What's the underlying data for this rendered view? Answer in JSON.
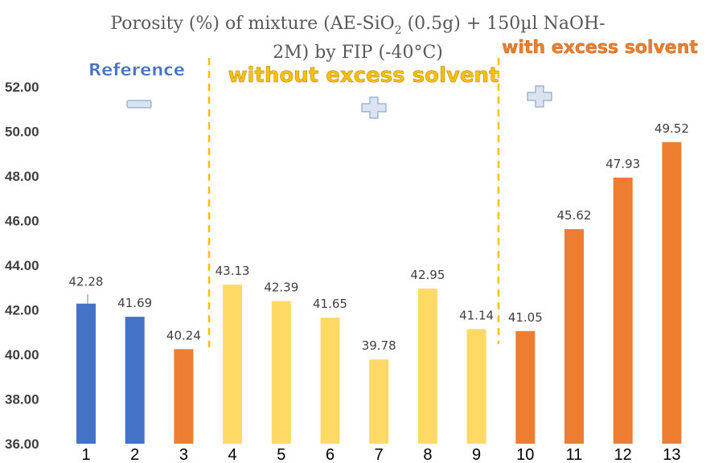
{
  "chart_data": {
    "type": "bar",
    "title_parts": {
      "pre": "Porosity (%) of mixture (AE-SiO",
      "sub": "2",
      "post": " (0.5g) + 150µl NaOH-",
      "line2": "2M) by FIP (-40°C)"
    },
    "categories": [
      "1",
      "2",
      "3",
      "4",
      "5",
      "6",
      "7",
      "8",
      "9",
      "10",
      "11",
      "12",
      "13"
    ],
    "values": [
      42.28,
      41.69,
      40.24,
      43.13,
      42.39,
      41.65,
      39.78,
      42.95,
      41.14,
      41.05,
      45.62,
      47.93,
      49.52
    ],
    "value_labels": [
      "42.28",
      "41.69",
      "40.24",
      "43.13",
      "42.39",
      "41.65",
      "39.78",
      "42.95",
      "41.14",
      "41.05",
      "45.62",
      "47.93",
      "49.52"
    ],
    "bar_colors": [
      "#4472c4",
      "#4472c4",
      "#ed7d31",
      "#ffd966",
      "#ffd966",
      "#ffd966",
      "#ffd966",
      "#ffd966",
      "#ffd966",
      "#ed7d31",
      "#ed7d31",
      "#ed7d31",
      "#ed7d31"
    ],
    "yticks": [
      "36.00",
      "38.00",
      "40.00",
      "42.00",
      "44.00",
      "46.00",
      "48.00",
      "50.00",
      "52.00"
    ],
    "ylim": [
      36,
      52
    ],
    "grid": false,
    "annotations": {
      "reference": "Reference",
      "without": "without excess solvent",
      "with": "with excess solvent",
      "minus_symbol": "minus-icon",
      "plus_symbol": "plus-icon"
    },
    "colors": {
      "reference": "#4472c4",
      "without": "#ffc000",
      "with": "#ed7d31",
      "divider": "#ffc000"
    }
  }
}
